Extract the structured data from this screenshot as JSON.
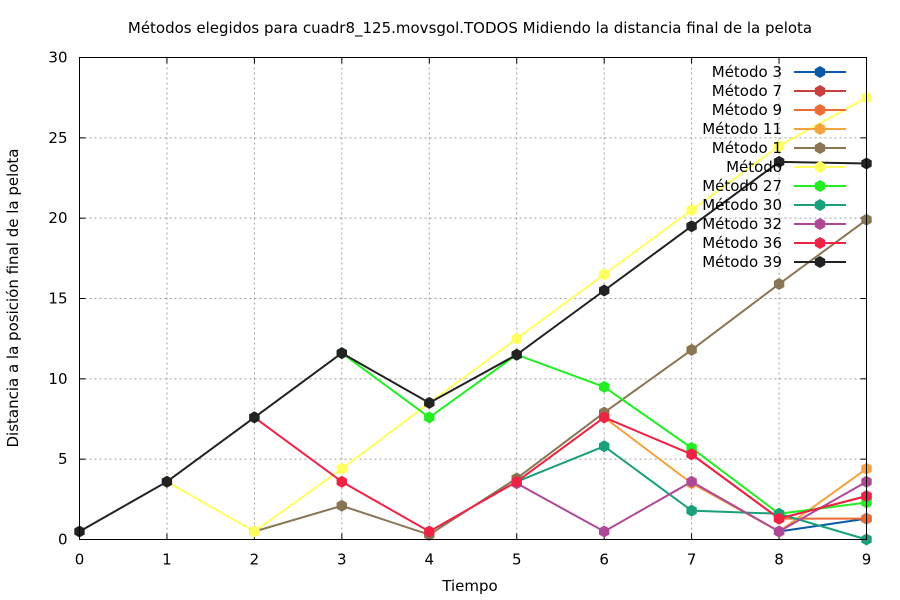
{
  "chart_data": {
    "type": "line",
    "title": "Métodos elegidos para cuadr8_125.movsgol.TODOS Midiendo la distancia final de la pelota",
    "xlabel": "Tiempo",
    "ylabel": "Distancia a la posición final de la pelota",
    "xlim": [
      0,
      9
    ],
    "ylim": [
      0,
      30
    ],
    "xticks": [
      0,
      1,
      2,
      3,
      4,
      5,
      6,
      7,
      8,
      9
    ],
    "yticks": [
      0,
      5,
      10,
      15,
      20,
      25,
      30
    ],
    "grid": true,
    "legend_position": "top-right",
    "series": [
      {
        "name": "Método 3",
        "color": "#0a5aa8",
        "x": [
          8,
          9
        ],
        "y": [
          0.5,
          1.3
        ]
      },
      {
        "name": "Método 7",
        "color": "#c8403e",
        "x": [
          7,
          8,
          9
        ],
        "y": [
          5.3,
          1.3,
          2.7
        ]
      },
      {
        "name": "Método 9",
        "color": "#ee6b35",
        "x": [
          8,
          9
        ],
        "y": [
          1.3,
          1.3
        ]
      },
      {
        "name": "Método 11",
        "color": "#f5a33e",
        "x": [
          6,
          7,
          8,
          9
        ],
        "y": [
          7.6,
          3.5,
          0.5,
          4.4
        ]
      },
      {
        "name": "Método 1",
        "color": "#8a7554",
        "x": [
          2,
          3,
          4,
          5,
          6,
          7,
          8,
          9
        ],
        "y": [
          0.5,
          2.1,
          0.3,
          3.8,
          7.9,
          11.8,
          15.9,
          19.9
        ]
      },
      {
        "name": "Método ",
        "color": "#ffff60",
        "x": [
          1,
          2,
          3,
          4,
          5,
          6,
          7,
          8,
          9
        ],
        "y": [
          3.6,
          0.5,
          4.4,
          8.5,
          12.5,
          16.5,
          20.5,
          24.5,
          27.5
        ]
      },
      {
        "name": "Método 27",
        "color": "#22ee22",
        "x": [
          3,
          4,
          5,
          6,
          7,
          8,
          9
        ],
        "y": [
          11.6,
          7.6,
          11.5,
          9.5,
          5.7,
          1.6,
          2.3
        ]
      },
      {
        "name": "Método 30",
        "color": "#1aa07a",
        "x": [
          5,
          6,
          7,
          8,
          9
        ],
        "y": [
          3.6,
          5.8,
          1.8,
          1.6,
          0.0
        ]
      },
      {
        "name": "Método 32",
        "color": "#b04898",
        "x": [
          5,
          6,
          7,
          8,
          9
        ],
        "y": [
          3.5,
          0.5,
          3.6,
          0.5,
          3.6
        ]
      },
      {
        "name": "Método 36",
        "color": "#ee2244",
        "x": [
          2,
          3,
          4,
          5,
          6,
          7,
          8,
          9
        ],
        "y": [
          7.6,
          3.6,
          0.5,
          3.6,
          7.6,
          5.3,
          1.3,
          2.7
        ]
      },
      {
        "name": "Método 39",
        "color": "#222222",
        "x": [
          0,
          1,
          2,
          3,
          4,
          5,
          6,
          7,
          8,
          9
        ],
        "y": [
          0.5,
          3.6,
          7.6,
          11.6,
          8.5,
          11.5,
          15.5,
          19.5,
          23.5,
          23.4
        ]
      }
    ]
  }
}
